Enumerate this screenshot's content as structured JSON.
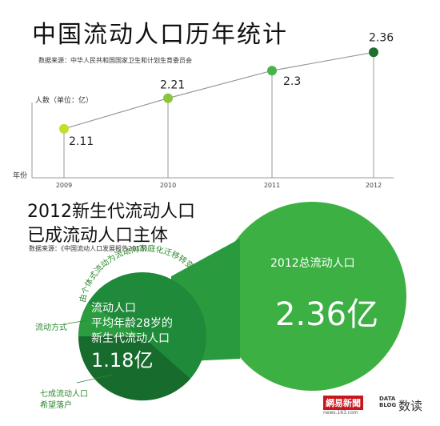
{
  "header": {
    "title": "中国流动人口历年统计",
    "source": "数据来源：中华人民共和国国家卫生和计划生育委员会",
    "ylabel": "人数（单位：亿）",
    "xname": "年份"
  },
  "chart_data": {
    "type": "line",
    "title": "中国流动人口历年统计",
    "ylabel": "人数（单位：亿）",
    "xlabel": "年份",
    "categories": [
      "2009",
      "2010",
      "2011",
      "2012"
    ],
    "values": [
      2.11,
      2.21,
      2.3,
      2.36
    ],
    "value_labels": [
      "2.11",
      "2.21",
      "2.3",
      "2.36"
    ],
    "point_colors": [
      "#c8dc2c",
      "#8cc43c",
      "#48b448",
      "#1f6e2e"
    ],
    "ylim": [
      1.95,
      2.4
    ],
    "grid": false
  },
  "section2": {
    "title_line1": "2012新生代流动人口",
    "title_line2": "已成流动人口主体",
    "source": "数据来源：《中国流动人口发展报告2013》",
    "total_label": "2012总流动人口",
    "total_value": "2.36亿",
    "inner_line1": "流动人口",
    "inner_line2": "平均年龄28岁的",
    "inner_line3": "新生代流动人口",
    "inner_value": "1.18亿",
    "curved_text": "由个体式流动为流动向家庭化迁移转变",
    "label_mode": "流动方式",
    "label_seventy_line1": "七成流动人口",
    "label_seventy_line2": "希望落户"
  },
  "colors": {
    "big_circle": "#3cb043",
    "small_circle": "#1f8a3a",
    "small_circle_dark": "#176b2c",
    "wedge": "#2a9a3e",
    "axis": "#999999",
    "accent_text": "#2f8a2f"
  },
  "footer": {
    "logo_netease": "網易新聞",
    "logo_netease_sub": "news.163.com",
    "logo_data": "DATA",
    "logo_blog": "BLOG",
    "logo_shudu": "数读"
  }
}
